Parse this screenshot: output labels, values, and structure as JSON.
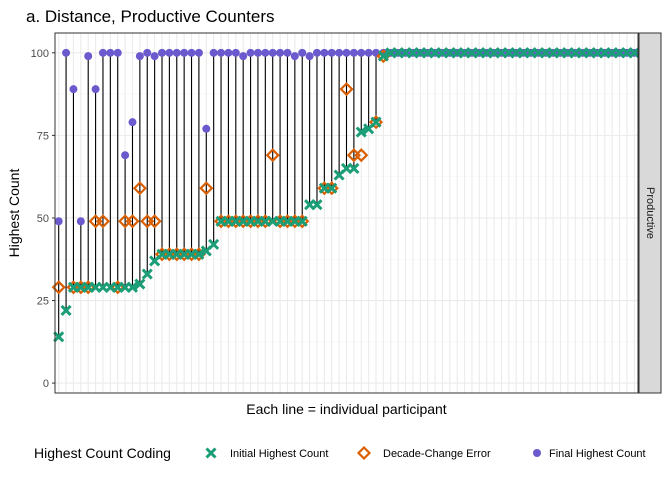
{
  "chart_data": {
    "type": "scatter",
    "title": "a. Distance, Productive Counters",
    "xlabel": "Each line = individual participant",
    "ylabel": "Highest Count",
    "ylim": [
      -3,
      106
    ],
    "yticks": [
      0,
      25,
      50,
      75,
      100
    ],
    "grid": true,
    "facet_label": "Productive",
    "legend": {
      "title": "Highest Count Coding",
      "position": "bottom"
    },
    "colors": {
      "initial": "#1b9e77",
      "decade": "#d95f02",
      "final": "#6a5acd",
      "segment": "#000000",
      "strip_fill": "#d9d9d9",
      "grid_major": "#ebebeb",
      "grid_minor": "#f5f5f5"
    },
    "series": [
      {
        "name": "Initial Highest Count",
        "marker": "x",
        "values": [
          14,
          22,
          29,
          29,
          29,
          29,
          29,
          29,
          29,
          29,
          29,
          30,
          33,
          37,
          39,
          39,
          39,
          39,
          39,
          39,
          40,
          42,
          49,
          49,
          49,
          49,
          49,
          49,
          49,
          49,
          49,
          49,
          49,
          49,
          54,
          54,
          59,
          59,
          63,
          65,
          65,
          76,
          77,
          79,
          99,
          100,
          100,
          100,
          100,
          100,
          100,
          100,
          100,
          100,
          100,
          100,
          100,
          100,
          100,
          100,
          100,
          100,
          100,
          100,
          100,
          100,
          100,
          100,
          100,
          100,
          100,
          100,
          100,
          100,
          100,
          100,
          100,
          100,
          100
        ]
      },
      {
        "name": "Decade-Change Error",
        "marker": "diamond",
        "values": [
          29,
          null,
          29,
          29,
          29,
          49,
          49,
          null,
          29,
          49,
          49,
          59,
          49,
          49,
          39,
          39,
          39,
          39,
          39,
          39,
          59,
          null,
          49,
          49,
          49,
          49,
          49,
          49,
          49,
          69,
          49,
          49,
          49,
          49,
          null,
          null,
          59,
          59,
          null,
          89,
          69,
          69,
          null,
          79,
          99,
          null,
          null,
          null,
          null,
          null,
          null,
          null,
          null,
          null,
          null,
          null,
          null,
          null,
          null,
          null,
          null,
          null,
          null,
          null,
          null,
          null,
          null,
          null,
          null,
          null,
          null,
          null,
          null,
          null,
          null,
          null,
          null,
          null,
          null
        ]
      },
      {
        "name": "Final Highest Count",
        "marker": "circle",
        "values": [
          49,
          100,
          89,
          49,
          99,
          89,
          100,
          100,
          100,
          69,
          79,
          99,
          100,
          99,
          100,
          100,
          100,
          100,
          100,
          100,
          77,
          100,
          100,
          100,
          100,
          99,
          100,
          100,
          100,
          100,
          100,
          100,
          99,
          100,
          99,
          100,
          100,
          100,
          100,
          100,
          100,
          100,
          100,
          100,
          100,
          100,
          100,
          100,
          100,
          100,
          100,
          100,
          100,
          100,
          100,
          100,
          100,
          100,
          100,
          100,
          100,
          100,
          100,
          100,
          100,
          100,
          100,
          100,
          100,
          100,
          100,
          100,
          100,
          100,
          100,
          100,
          100,
          100,
          100
        ]
      }
    ]
  }
}
